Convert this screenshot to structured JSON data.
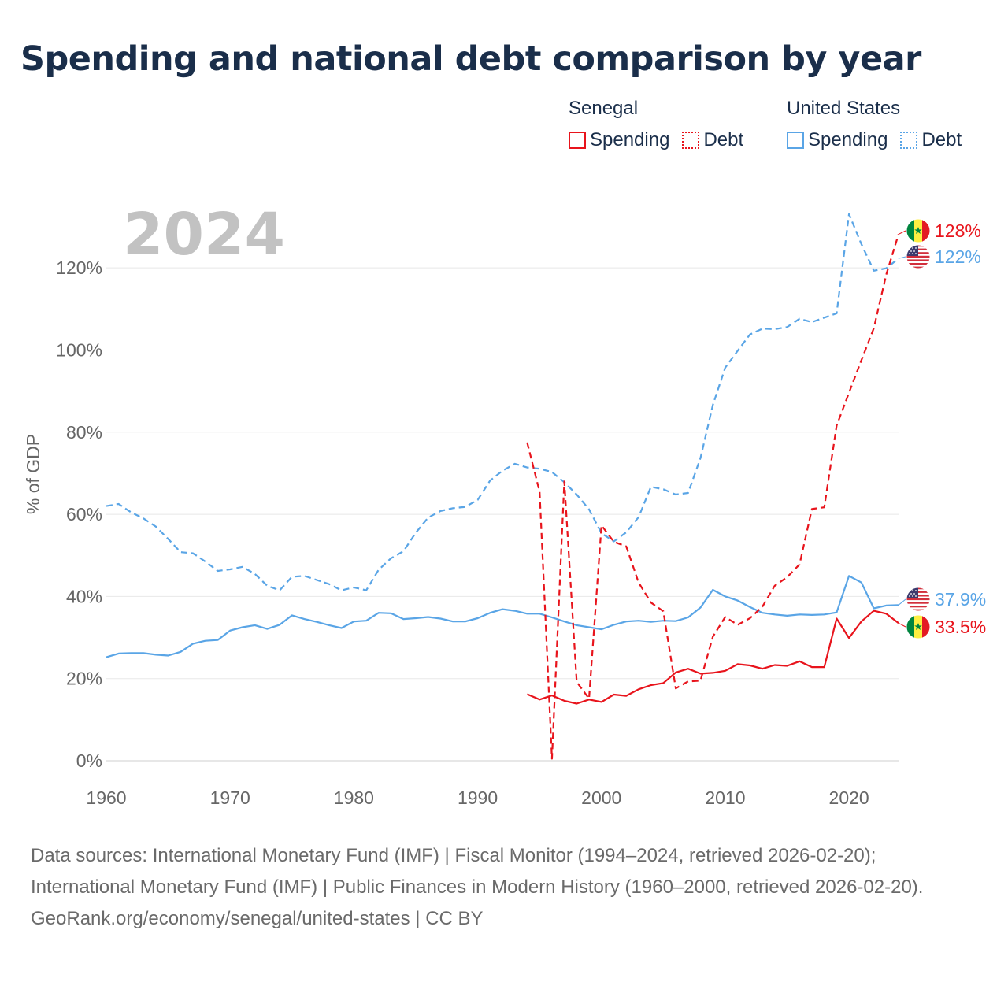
{
  "title": "Spending and national debt comparison by year",
  "legend": {
    "groups": [
      {
        "country": "Senegal",
        "spending_label": "Spending",
        "debt_label": "Debt",
        "color": "#e8141c"
      },
      {
        "country": "United States",
        "spending_label": "Spending",
        "debt_label": "Debt",
        "color": "#5aa5e6"
      }
    ]
  },
  "chart_data": {
    "type": "line",
    "year_watermark": "2024",
    "ylabel": "% of GDP",
    "xlabel": "",
    "xlim": [
      1960,
      2024
    ],
    "ylim": [
      0,
      130
    ],
    "x_ticks": [
      1960,
      1970,
      1980,
      1990,
      2000,
      2010,
      2020
    ],
    "x_tick_labels": [
      "1960",
      "1970",
      "1980",
      "1990",
      "2000",
      "2010",
      "2020"
    ],
    "y_ticks": [
      0,
      20,
      40,
      60,
      80,
      100,
      120
    ],
    "y_tick_labels": [
      "0%",
      "20%",
      "40%",
      "60%",
      "80%",
      "100%",
      "120%"
    ],
    "grid": true,
    "series": [
      {
        "name": "United States Debt",
        "country": "United States",
        "metric": "Debt",
        "color": "#5aa5e6",
        "dash": "dashed",
        "start_year": 1960,
        "values": [
          62,
          62.5,
          60.5,
          59,
          57,
          54,
          50.8,
          50.5,
          48.5,
          46.2,
          46.6,
          47.2,
          45.5,
          42.6,
          41.5,
          44.8,
          45,
          44,
          43,
          41.5,
          42.2,
          41.5,
          46.5,
          49.3,
          51,
          55.5,
          59.2,
          60.8,
          61.5,
          61.8,
          63.5,
          68.2,
          70.6,
          72.3,
          71.4,
          71.1,
          70.3,
          67.8,
          64.8,
          61.2,
          55.4,
          53.4,
          55.6,
          59.3,
          66.7,
          66.1,
          64.8,
          65.2,
          73.7,
          86.6,
          95.7,
          99.8,
          103.8,
          105.2,
          105.1,
          105.6,
          107.6,
          106.8,
          107.9,
          108.9,
          133.1,
          125.8,
          119.3,
          119.9,
          122.3
        ],
        "end_label": "122%"
      },
      {
        "name": "United States Spending",
        "country": "United States",
        "metric": "Spending",
        "color": "#5aa5e6",
        "dash": "solid",
        "start_year": 1960,
        "values": [
          25.2,
          26.1,
          26.2,
          26.2,
          25.8,
          25.6,
          26.5,
          28.5,
          29.2,
          29.4,
          31.7,
          32.5,
          33,
          32.1,
          33.1,
          35.4,
          34.5,
          33.8,
          33,
          32.3,
          33.9,
          34.1,
          36,
          35.9,
          34.5,
          34.7,
          35,
          34.6,
          33.9,
          33.9,
          34.7,
          36,
          36.9,
          36.5,
          35.8,
          35.8,
          34.9,
          33.9,
          33,
          32.5,
          32,
          33.1,
          33.9,
          34.1,
          33.8,
          34.1,
          34,
          34.9,
          37.3,
          41.6,
          40,
          39,
          37.4,
          36,
          35.6,
          35.3,
          35.6,
          35.5,
          35.6,
          36.1,
          45,
          43.4,
          37.1,
          37.8,
          37.9
        ],
        "end_label": "37.9%"
      },
      {
        "name": "Senegal Debt",
        "country": "Senegal",
        "metric": "Debt",
        "color": "#e8141c",
        "dash": "dashed",
        "start_year": 1994,
        "values": [
          77.5,
          65.5,
          0.5,
          68,
          19.2,
          15.1,
          57.3,
          53.3,
          52.2,
          43.4,
          38.5,
          36.4,
          17.6,
          19.3,
          19.5,
          30.2,
          35,
          33.1,
          34.7,
          37.5,
          42.6,
          44.7,
          47.8,
          61.3,
          61.7,
          81.6,
          89.6,
          97.5,
          105.3,
          118.3,
          128.2
        ],
        "end_label": "128%"
      },
      {
        "name": "Senegal Spending",
        "country": "Senegal",
        "metric": "Spending",
        "color": "#e8141c",
        "dash": "solid",
        "start_year": 1994,
        "values": [
          16.2,
          14.9,
          15.9,
          14.6,
          13.9,
          14.9,
          14.3,
          16.1,
          15.8,
          17.4,
          18.4,
          18.9,
          21.5,
          22.4,
          21.2,
          21.4,
          21.9,
          23.5,
          23.2,
          22.4,
          23.3,
          23.1,
          24.2,
          22.8,
          22.8,
          34.6,
          29.9,
          33.9,
          36.5,
          35.8,
          33.5
        ],
        "end_label": "33.5%"
      }
    ]
  },
  "footer": {
    "sources": "Data sources: International Monetary Fund (IMF) | Fiscal Monitor (1994–2024, retrieved 2026-02-20); International Monetary Fund (IMF) | Public Finances in Modern History (1960–2000, retrieved 2026-02-20).",
    "credit": "GeoRank.org/economy/senegal/united-states | CC BY"
  }
}
